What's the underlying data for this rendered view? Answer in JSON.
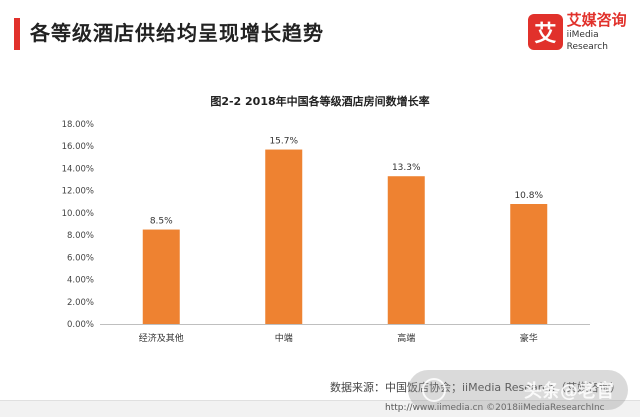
{
  "colors": {
    "accent": "#e1312b",
    "bar": "#ee8231",
    "axis": "#bfbfbf",
    "logo": "#e1312b"
  },
  "header": {
    "title": "各等级酒店供给均呈现增长趋势"
  },
  "logo": {
    "mark": "艾",
    "cn": "艾媒咨询",
    "en": "iiMedia Research"
  },
  "chart_data": {
    "type": "bar",
    "title": "图2-2 2018年中国各等级酒店房间数增长率",
    "categories": [
      "经济及其他",
      "中端",
      "高端",
      "豪华"
    ],
    "values": [
      8.5,
      15.7,
      13.3,
      10.8
    ],
    "value_labels": [
      "8.5%",
      "15.7%",
      "13.3%",
      "10.8%"
    ],
    "ylim": [
      0,
      18
    ],
    "yticks": [
      "0.00%",
      "2.00%",
      "4.00%",
      "6.00%",
      "8.00%",
      "10.00%",
      "12.00%",
      "14.00%",
      "16.00%",
      "18.00%"
    ],
    "xlabel": "",
    "ylabel": "",
    "grid": false
  },
  "source": "数据来源：中国饭店协会；iiMedia Research（艾媒咨询）",
  "footer": "http://www.iimedia.cn    ©2018iiMediaResearchInc",
  "watermark": "头条@老官"
}
